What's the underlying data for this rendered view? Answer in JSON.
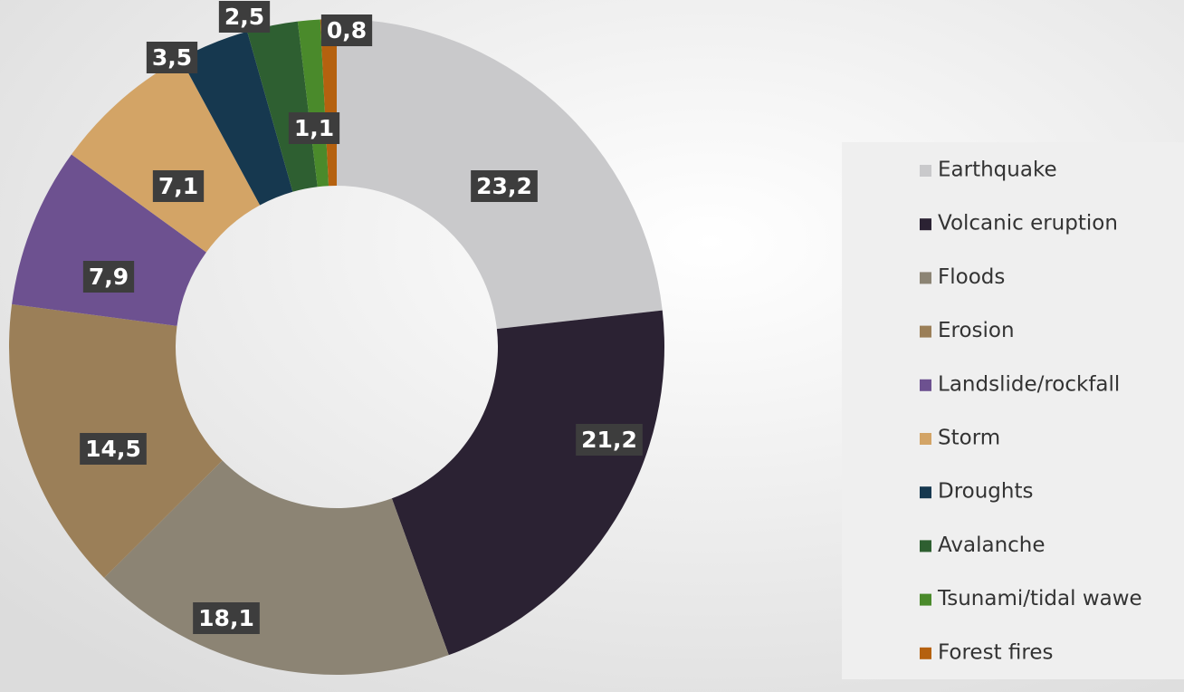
{
  "chart_data": {
    "type": "donut",
    "categories": [
      "Earthquake",
      "Volcanic eruption",
      "Floods",
      "Erosion",
      "Landslide/rockfall",
      "Storm",
      "Droughts",
      "Avalanche",
      "Tsunami/tidal wawe",
      "Forest fires"
    ],
    "values": [
      23.2,
      21.2,
      18.1,
      14.5,
      7.9,
      7.1,
      3.5,
      2.5,
      1.1,
      0.8
    ],
    "value_labels": [
      "23,2",
      "21,2",
      "18,1",
      "14,5",
      "7,9",
      "7,1",
      "3,5",
      "2,5",
      "1,1",
      "0,8"
    ],
    "colors": [
      "#c9c9cb",
      "#2b2233",
      "#8c8474",
      "#9b7f58",
      "#6d5190",
      "#d3a466",
      "#16384f",
      "#2e5f31",
      "#4a8a2b",
      "#b5610f"
    ],
    "legend": "right"
  }
}
